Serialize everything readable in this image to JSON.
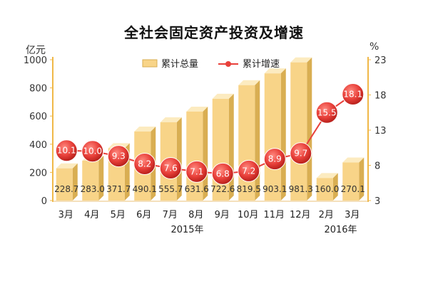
{
  "chart_data": {
    "type": "bar+line",
    "title": "全社会固定资产投资及增速",
    "left_axis_unit": "亿元",
    "right_axis_unit": "%",
    "left_ylim": [
      0,
      1000
    ],
    "left_ticks": [
      "0",
      "200",
      "400",
      "600",
      "800",
      "1000"
    ],
    "right_ylim": [
      3,
      23
    ],
    "right_ticks": [
      "3",
      "8",
      "13",
      "18",
      "23"
    ],
    "categories": [
      "3月",
      "4月",
      "5月",
      "6月",
      "7月",
      "8月",
      "9月",
      "10月",
      "11月",
      "12月",
      "2月",
      "3月"
    ],
    "year_groups": [
      {
        "label": "2015年",
        "from": 0,
        "to": 9
      },
      {
        "label": "2016年",
        "from": 10,
        "to": 11
      }
    ],
    "series": [
      {
        "name": "累计总量",
        "kind": "bar",
        "axis": "left",
        "values": [
          228.7,
          283.0,
          371.7,
          490.1,
          555.7,
          631.6,
          722.6,
          819.5,
          903.1,
          981.3,
          160.0,
          270.1
        ],
        "labels": [
          "228.7",
          "283.0",
          "371.7",
          "490.1",
          "555.7",
          "631.6",
          "722.6",
          "819.5",
          "903.1",
          "981.3",
          "160.0",
          "270.1"
        ]
      },
      {
        "name": "累计增速",
        "kind": "line",
        "axis": "right",
        "values": [
          10.1,
          10.0,
          9.3,
          8.2,
          7.6,
          7.1,
          6.8,
          7.2,
          8.9,
          9.7,
          15.5,
          18.1
        ],
        "labels": [
          "10.1",
          "10.0",
          "9.3",
          "8.2",
          "7.6",
          "7.1",
          "6.8",
          "7.2",
          "8.9",
          "9.7",
          "15.5",
          "18.1"
        ]
      }
    ],
    "legend_position": "top-center",
    "grid": false,
    "colors": {
      "bar_front": "#F8D488",
      "bar_top": "#FCEBC0",
      "bar_side": "#D9AE52",
      "line": "#E8403A",
      "marker": "#E8403A",
      "left_axis": "#F0B848",
      "right_axis": "#F0B848",
      "label_text": "#333333",
      "marker_text": "#FFFFFF"
    }
  }
}
